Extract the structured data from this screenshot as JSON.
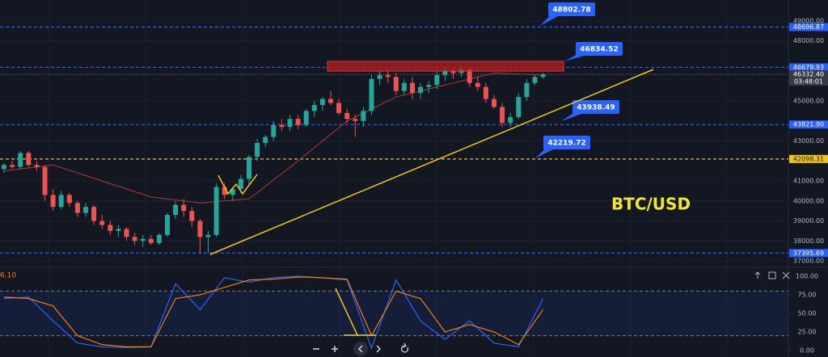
{
  "chart_data": {
    "type": "candlestick",
    "symbol": "BTC/USD",
    "open": [
      41600,
      41800,
      41700,
      42400,
      41800,
      41700,
      40300,
      39700,
      40300,
      39900,
      39400,
      39700,
      39000,
      38800,
      38500,
      38600,
      38200,
      38000,
      38100,
      37900,
      38300,
      39300,
      39800,
      39500,
      39000,
      38200,
      38300,
      40700,
      40300,
      40600,
      41100,
      42200,
      42900,
      43200,
      43800,
      43700,
      44100,
      43800,
      44500,
      44800,
      45100,
      44900,
      44400,
      44100,
      44000,
      44500,
      46100,
      46300,
      46200,
      45500,
      45900,
      45400,
      45700,
      45800,
      46300,
      46500,
      46400,
      46600,
      45900,
      45700,
      45100,
      44700,
      43900,
      44200,
      45200,
      45900,
      46200
    ],
    "high": [
      41900,
      42000,
      42500,
      42500,
      42000,
      41800,
      40600,
      40500,
      40400,
      40000,
      39900,
      39800,
      39300,
      39000,
      38800,
      38700,
      38400,
      38300,
      38300,
      38400,
      39400,
      40000,
      40100,
      39700,
      39100,
      38500,
      40900,
      40900,
      40700,
      41300,
      42300,
      43100,
      43300,
      44000,
      44100,
      44300,
      44300,
      44600,
      45000,
      45200,
      45500,
      45100,
      44600,
      44300,
      44700,
      46300,
      46500,
      46600,
      46400,
      46100,
      46200,
      45900,
      46000,
      46500,
      46700,
      46700,
      46800,
      46700,
      46200,
      45900,
      45300,
      44900,
      44400,
      45400,
      46100,
      46300,
      46400
    ],
    "low": [
      41400,
      41600,
      41600,
      41700,
      41500,
      40000,
      39500,
      39600,
      39700,
      39200,
      39200,
      38800,
      38600,
      38300,
      38200,
      38000,
      37800,
      37700,
      37800,
      37800,
      38200,
      39100,
      39200,
      38700,
      37400,
      37400,
      38200,
      40100,
      40000,
      40400,
      40800,
      42000,
      42700,
      43000,
      43500,
      43500,
      43600,
      43700,
      44200,
      44500,
      44800,
      44300,
      43900,
      43200,
      43700,
      44300,
      45800,
      45900,
      45300,
      45300,
      45100,
      45100,
      45400,
      45600,
      46000,
      46100,
      46200,
      45700,
      45500,
      44900,
      44600,
      43700,
      43700,
      44100,
      45000,
      45800,
      46100
    ],
    "close": [
      41800,
      41700,
      42400,
      41800,
      41700,
      40300,
      39700,
      40300,
      39900,
      39400,
      39700,
      39000,
      38800,
      38500,
      38600,
      38200,
      38000,
      38100,
      37900,
      38300,
      39300,
      39800,
      39500,
      39000,
      38200,
      38300,
      40700,
      40300,
      40600,
      41100,
      42200,
      42900,
      43200,
      43800,
      43700,
      44100,
      43800,
      44500,
      44800,
      45100,
      44900,
      44400,
      44100,
      44000,
      44500,
      46100,
      46300,
      46200,
      45500,
      45900,
      45400,
      45700,
      45800,
      46300,
      46500,
      46400,
      46600,
      45900,
      45700,
      45100,
      44700,
      43900,
      44200,
      45200,
      45900,
      46200,
      46332.4
    ],
    "colors": {
      "up": "#26a69a",
      "down": "#ef5350"
    },
    "moving_average": {
      "color": "#b23a2e",
      "x": [
        0,
        6,
        12,
        18,
        24,
        30,
        36,
        42,
        48,
        54,
        60,
        66
      ],
      "values": [
        41500,
        41800,
        41000,
        40200,
        39900,
        40100,
        42000,
        44000,
        45200,
        45800,
        46400,
        46300
      ]
    },
    "ylim": [
      36800,
      50050
    ],
    "yticks": [
      {
        "value": 49000,
        "label": "49000.00"
      },
      {
        "value": 48000,
        "label": "48000.00"
      },
      {
        "value": 45000,
        "label": "45000.00"
      },
      {
        "value": 43000,
        "label": "43000.00"
      },
      {
        "value": 41000,
        "label": "41000.00"
      },
      {
        "value": 40000,
        "label": "40000.00"
      },
      {
        "value": 39000,
        "label": "39000.00"
      },
      {
        "value": 38000,
        "label": "38000.00"
      },
      {
        "value": 37000,
        "label": "37000.00"
      }
    ],
    "price_lines": [
      {
        "value": 48696.87,
        "label": "48696.87",
        "color": "#2962ff"
      },
      {
        "value": 46679.93,
        "label": "46679.93",
        "color": "#2962ff"
      },
      {
        "value": 43821.9,
        "label": "43821.90",
        "color": "#2962ff"
      },
      {
        "value": 42098.31,
        "label": "42098.31",
        "color": "#f0c419"
      },
      {
        "value": 37395.69,
        "label": "37395.69",
        "color": "#2962ff"
      }
    ],
    "current_price": {
      "value": 46332.4,
      "label": "46332.40",
      "countdown": "03:48:01"
    },
    "callouts": [
      {
        "value": 48802.78,
        "label": "48802.78"
      },
      {
        "value": 46834.52,
        "label": "46834.52"
      },
      {
        "value": 43938.49,
        "label": "43938.49"
      },
      {
        "value": 42219.72,
        "label": "42219.72"
      }
    ],
    "oscillator": {
      "type": "line",
      "indicator_value": "6.10",
      "ylim": [
        -8.7,
        110.9
      ],
      "yticks": [
        {
          "value": 100,
          "label": "100.00"
        },
        {
          "value": 75,
          "label": "75.00"
        },
        {
          "value": 50,
          "label": "50.00"
        },
        {
          "value": 25,
          "label": "25.00"
        },
        {
          "value": 0,
          "label": "0.00"
        }
      ],
      "bands": [
        20,
        80
      ],
      "series": [
        {
          "color": "#2962ff",
          "x": [
            0,
            3,
            6,
            9,
            12,
            15,
            18,
            21,
            24,
            27,
            30,
            33,
            36,
            39,
            42,
            45,
            48,
            51,
            54,
            57,
            60,
            63,
            66
          ],
          "values": [
            70,
            72,
            40,
            10,
            5,
            4,
            5,
            90,
            55,
            98,
            92,
            98,
            100,
            98,
            95,
            3,
            95,
            40,
            15,
            40,
            10,
            5,
            70
          ]
        },
        {
          "color": "#f57c00",
          "x": [
            0,
            3,
            6,
            9,
            12,
            15,
            18,
            21,
            24,
            27,
            30,
            33,
            36,
            39,
            42,
            45,
            48,
            51,
            54,
            57,
            60,
            63,
            66
          ],
          "values": [
            72,
            70,
            60,
            20,
            8,
            5,
            5,
            70,
            75,
            85,
            95,
            96,
            99,
            98,
            96,
            20,
            80,
            70,
            25,
            35,
            25,
            8,
            55
          ]
        }
      ]
    }
  }
}
